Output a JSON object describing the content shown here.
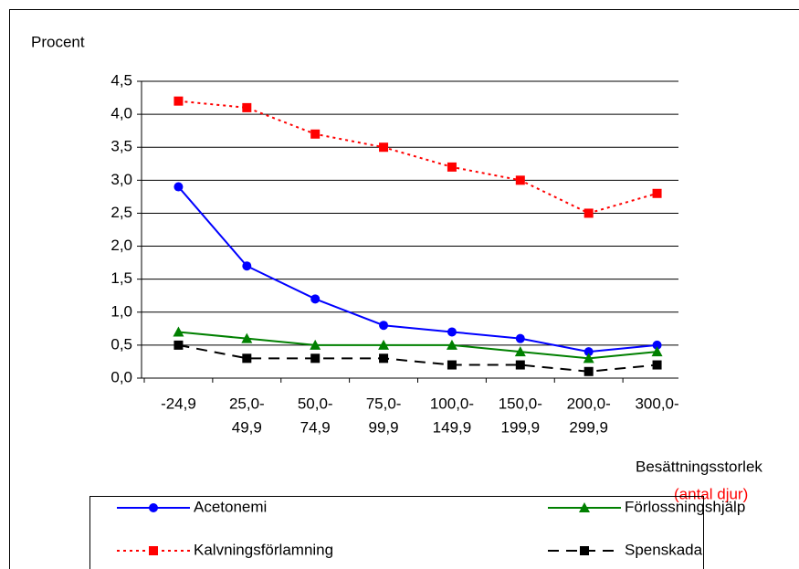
{
  "chart_data": {
    "type": "line",
    "y_label": "Procent",
    "x_label": "Besättningsstorlek",
    "x_label_note": "(antal djur)",
    "categories": [
      [
        "-24,9"
      ],
      [
        "25,0-",
        "49,9"
      ],
      [
        "50,0-",
        "74,9"
      ],
      [
        "75,0-",
        "99,9"
      ],
      [
        "100,0-",
        "149,9"
      ],
      [
        "150,0-",
        "199,9"
      ],
      [
        "200,0-",
        "299,9"
      ],
      [
        "300,0-"
      ]
    ],
    "ylim": [
      0,
      4.5
    ],
    "yticks": [
      {
        "value": 0,
        "label": "0,0"
      },
      {
        "value": 0.5,
        "label": "0,5"
      },
      {
        "value": 1,
        "label": "1,0"
      },
      {
        "value": 1.5,
        "label": "1,5"
      },
      {
        "value": 2,
        "label": "2,0"
      },
      {
        "value": 2.5,
        "label": "2,5"
      },
      {
        "value": 3,
        "label": "3,0"
      },
      {
        "value": 3.5,
        "label": "3,5"
      },
      {
        "value": 4,
        "label": "4,0"
      },
      {
        "value": 4.5,
        "label": "4,5"
      }
    ],
    "grid": true,
    "series": [
      {
        "name": "Acetonemi",
        "color": "#0000ff",
        "marker": "circle",
        "dash": "solid",
        "values": [
          2.9,
          1.7,
          1.2,
          0.8,
          0.7,
          0.6,
          0.4,
          0.5
        ]
      },
      {
        "name": "Förlossningshjälp",
        "color": "#008000",
        "marker": "triangle",
        "dash": "solid",
        "values": [
          0.7,
          0.6,
          0.5,
          0.5,
          0.5,
          0.4,
          0.3,
          0.4
        ]
      },
      {
        "name": "Kalvningsförlamning",
        "color": "#ff0000",
        "marker": "square",
        "dash": "dotted",
        "values": [
          4.2,
          4.1,
          3.7,
          3.5,
          3.2,
          3.0,
          2.5,
          2.8
        ]
      },
      {
        "name": "Spenskada",
        "color": "#000000",
        "marker": "square",
        "dash": "dashed",
        "values": [
          0.5,
          0.3,
          0.3,
          0.3,
          0.2,
          0.2,
          0.1,
          0.2
        ]
      }
    ]
  }
}
